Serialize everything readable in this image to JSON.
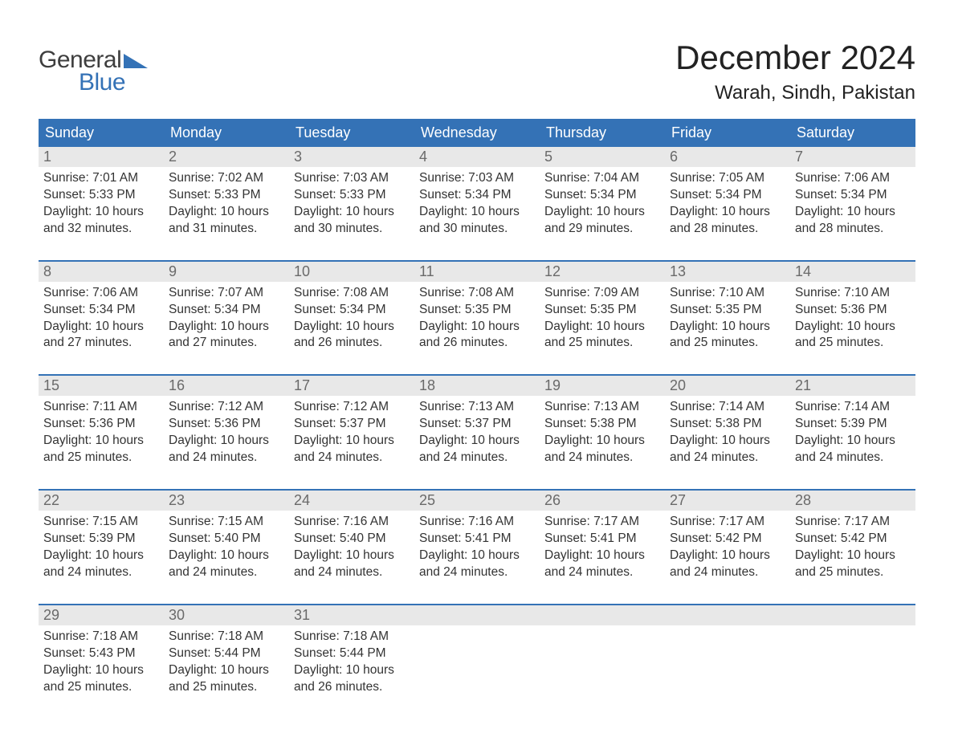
{
  "logo": {
    "text1": "General",
    "text2": "Blue"
  },
  "title": "December 2024",
  "location": "Warah, Sindh, Pakistan",
  "colors": {
    "header_bg": "#3472b6",
    "header_text": "#ffffff",
    "daynum_bg": "#e8e8e8",
    "daynum_text": "#6a6a6a",
    "body_text": "#333333",
    "title_text": "#222222",
    "week_border": "#3472b6",
    "logo_gray": "#3e3e3e",
    "logo_blue": "#3472b6",
    "background": "#ffffff"
  },
  "typography": {
    "month_title_fontsize": 42,
    "location_fontsize": 24,
    "weekday_fontsize": 18,
    "daynum_fontsize": 18,
    "dayinfo_fontsize": 15.5,
    "logo_fontsize": 30,
    "font_family": "Arial"
  },
  "weekdays": [
    "Sunday",
    "Monday",
    "Tuesday",
    "Wednesday",
    "Thursday",
    "Friday",
    "Saturday"
  ],
  "days": [
    {
      "n": "1",
      "sunrise": "7:01 AM",
      "sunset": "5:33 PM",
      "daylight": "10 hours and 32 minutes."
    },
    {
      "n": "2",
      "sunrise": "7:02 AM",
      "sunset": "5:33 PM",
      "daylight": "10 hours and 31 minutes."
    },
    {
      "n": "3",
      "sunrise": "7:03 AM",
      "sunset": "5:33 PM",
      "daylight": "10 hours and 30 minutes."
    },
    {
      "n": "4",
      "sunrise": "7:03 AM",
      "sunset": "5:34 PM",
      "daylight": "10 hours and 30 minutes."
    },
    {
      "n": "5",
      "sunrise": "7:04 AM",
      "sunset": "5:34 PM",
      "daylight": "10 hours and 29 minutes."
    },
    {
      "n": "6",
      "sunrise": "7:05 AM",
      "sunset": "5:34 PM",
      "daylight": "10 hours and 28 minutes."
    },
    {
      "n": "7",
      "sunrise": "7:06 AM",
      "sunset": "5:34 PM",
      "daylight": "10 hours and 28 minutes."
    },
    {
      "n": "8",
      "sunrise": "7:06 AM",
      "sunset": "5:34 PM",
      "daylight": "10 hours and 27 minutes."
    },
    {
      "n": "9",
      "sunrise": "7:07 AM",
      "sunset": "5:34 PM",
      "daylight": "10 hours and 27 minutes."
    },
    {
      "n": "10",
      "sunrise": "7:08 AM",
      "sunset": "5:34 PM",
      "daylight": "10 hours and 26 minutes."
    },
    {
      "n": "11",
      "sunrise": "7:08 AM",
      "sunset": "5:35 PM",
      "daylight": "10 hours and 26 minutes."
    },
    {
      "n": "12",
      "sunrise": "7:09 AM",
      "sunset": "5:35 PM",
      "daylight": "10 hours and 25 minutes."
    },
    {
      "n": "13",
      "sunrise": "7:10 AM",
      "sunset": "5:35 PM",
      "daylight": "10 hours and 25 minutes."
    },
    {
      "n": "14",
      "sunrise": "7:10 AM",
      "sunset": "5:36 PM",
      "daylight": "10 hours and 25 minutes."
    },
    {
      "n": "15",
      "sunrise": "7:11 AM",
      "sunset": "5:36 PM",
      "daylight": "10 hours and 25 minutes."
    },
    {
      "n": "16",
      "sunrise": "7:12 AM",
      "sunset": "5:36 PM",
      "daylight": "10 hours and 24 minutes."
    },
    {
      "n": "17",
      "sunrise": "7:12 AM",
      "sunset": "5:37 PM",
      "daylight": "10 hours and 24 minutes."
    },
    {
      "n": "18",
      "sunrise": "7:13 AM",
      "sunset": "5:37 PM",
      "daylight": "10 hours and 24 minutes."
    },
    {
      "n": "19",
      "sunrise": "7:13 AM",
      "sunset": "5:38 PM",
      "daylight": "10 hours and 24 minutes."
    },
    {
      "n": "20",
      "sunrise": "7:14 AM",
      "sunset": "5:38 PM",
      "daylight": "10 hours and 24 minutes."
    },
    {
      "n": "21",
      "sunrise": "7:14 AM",
      "sunset": "5:39 PM",
      "daylight": "10 hours and 24 minutes."
    },
    {
      "n": "22",
      "sunrise": "7:15 AM",
      "sunset": "5:39 PM",
      "daylight": "10 hours and 24 minutes."
    },
    {
      "n": "23",
      "sunrise": "7:15 AM",
      "sunset": "5:40 PM",
      "daylight": "10 hours and 24 minutes."
    },
    {
      "n": "24",
      "sunrise": "7:16 AM",
      "sunset": "5:40 PM",
      "daylight": "10 hours and 24 minutes."
    },
    {
      "n": "25",
      "sunrise": "7:16 AM",
      "sunset": "5:41 PM",
      "daylight": "10 hours and 24 minutes."
    },
    {
      "n": "26",
      "sunrise": "7:17 AM",
      "sunset": "5:41 PM",
      "daylight": "10 hours and 24 minutes."
    },
    {
      "n": "27",
      "sunrise": "7:17 AM",
      "sunset": "5:42 PM",
      "daylight": "10 hours and 24 minutes."
    },
    {
      "n": "28",
      "sunrise": "7:17 AM",
      "sunset": "5:42 PM",
      "daylight": "10 hours and 25 minutes."
    },
    {
      "n": "29",
      "sunrise": "7:18 AM",
      "sunset": "5:43 PM",
      "daylight": "10 hours and 25 minutes."
    },
    {
      "n": "30",
      "sunrise": "7:18 AM",
      "sunset": "5:44 PM",
      "daylight": "10 hours and 25 minutes."
    },
    {
      "n": "31",
      "sunrise": "7:18 AM",
      "sunset": "5:44 PM",
      "daylight": "10 hours and 26 minutes."
    }
  ],
  "labels": {
    "sunrise_prefix": "Sunrise: ",
    "sunset_prefix": "Sunset: ",
    "daylight_prefix": "Daylight: "
  },
  "grid": {
    "columns": 7,
    "rows": 5,
    "start_weekday_index": 0
  }
}
